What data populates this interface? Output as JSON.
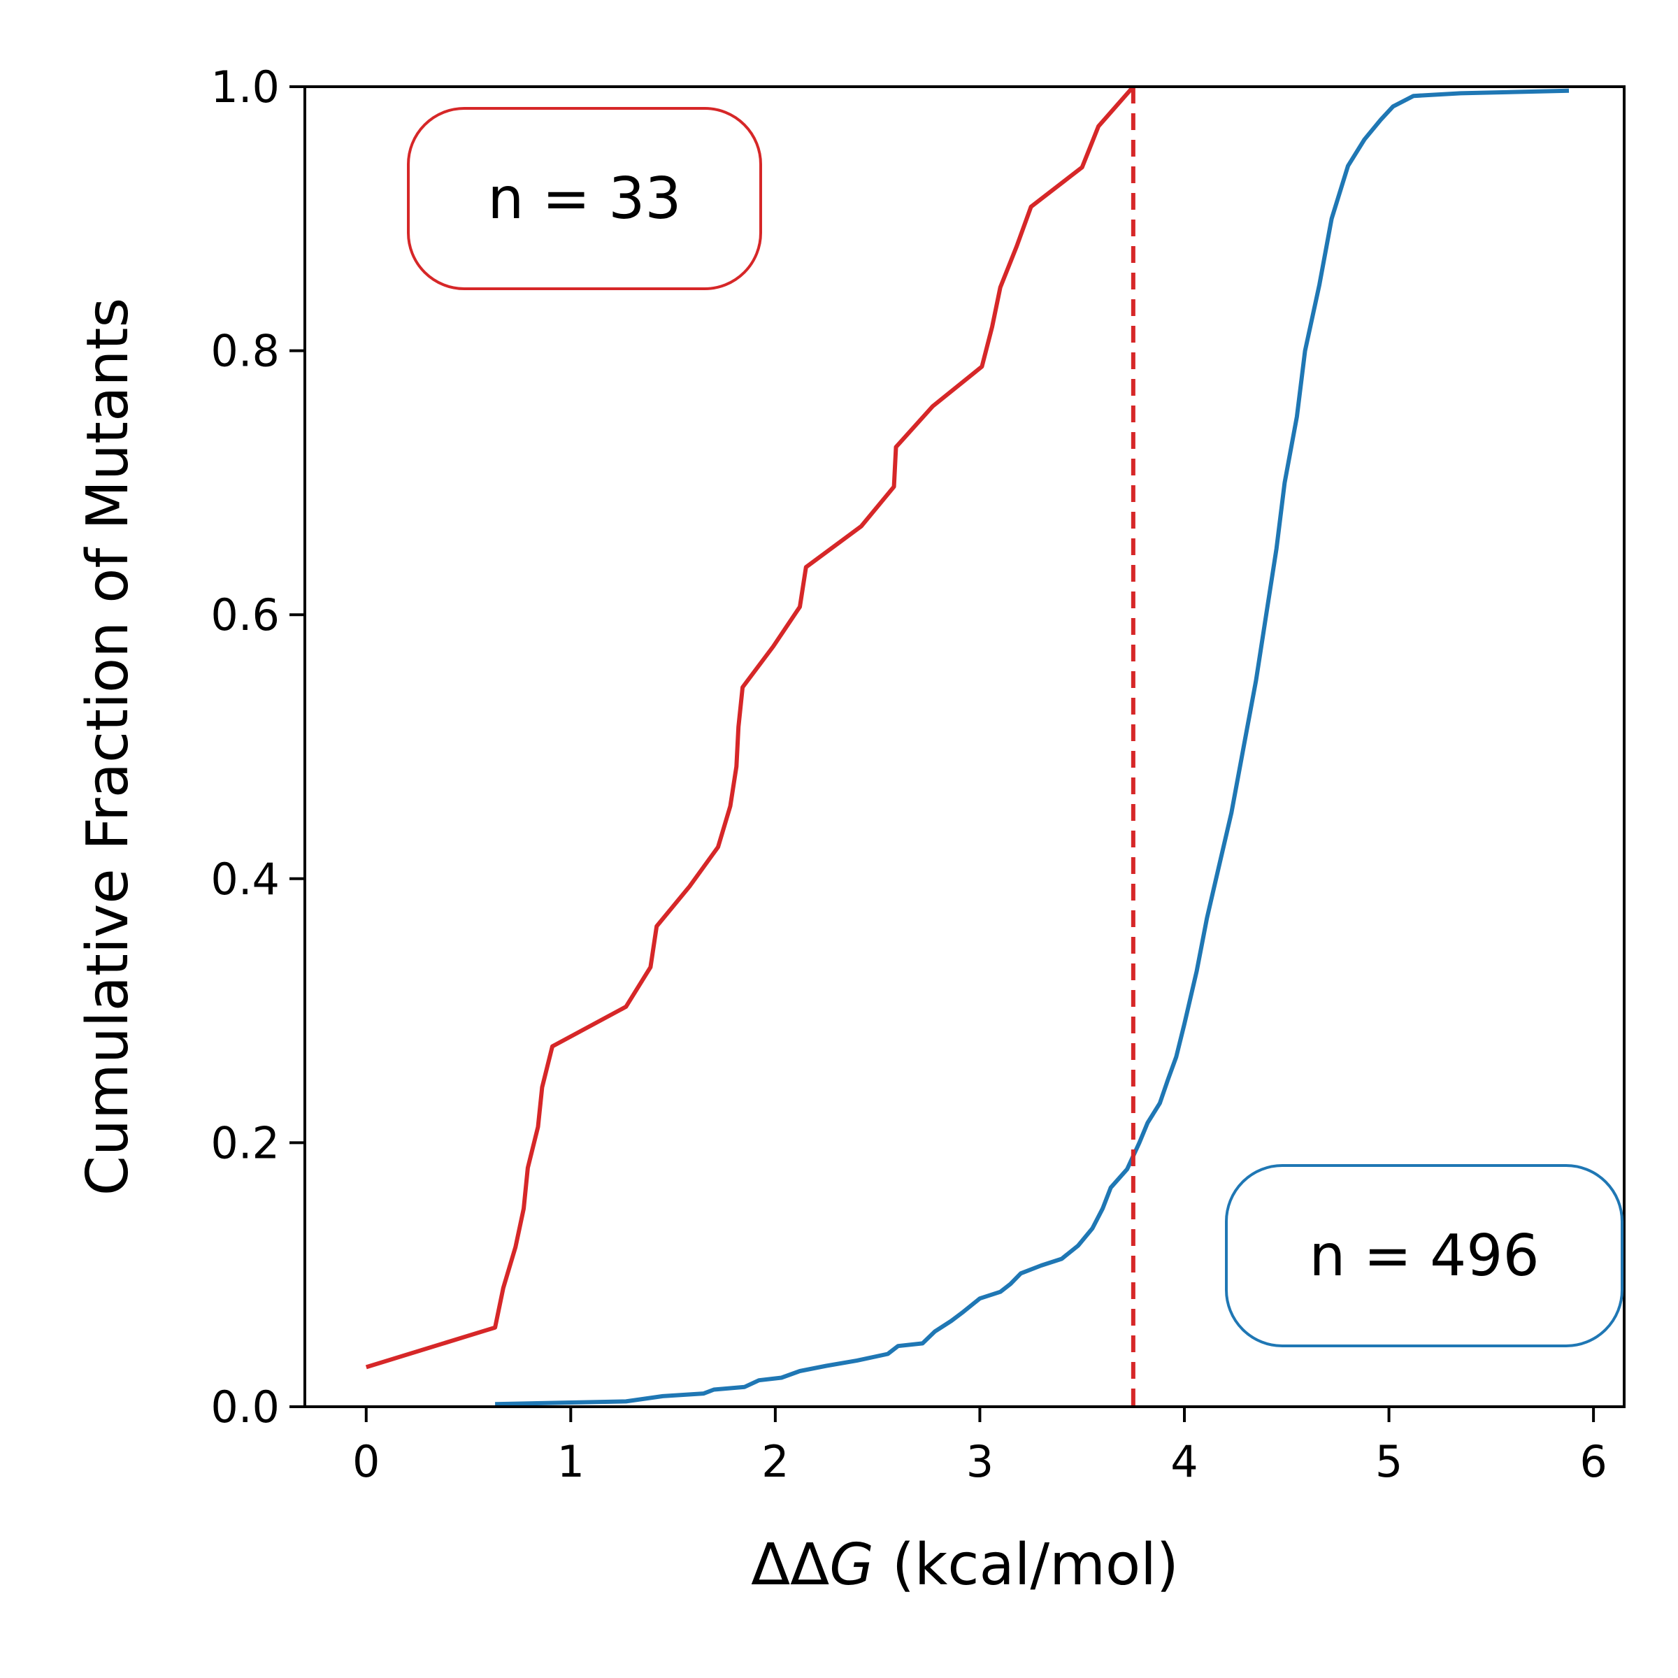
{
  "chart_data": {
    "type": "line",
    "xlabel_prefix": "ΔΔ",
    "xlabel_italic": "G",
    "xlabel_suffix": " (kcal/mol)",
    "ylabel": "Cumulative Fraction of Mutants",
    "xlim": [
      -0.3,
      6.15
    ],
    "ylim": [
      0.0,
      1.0
    ],
    "xticks": [
      0,
      1,
      2,
      3,
      4,
      5,
      6
    ],
    "yticks": [
      0.0,
      0.2,
      0.4,
      0.6,
      0.8,
      1.0
    ],
    "ytick_labels": [
      "0.0",
      "0.2",
      "0.4",
      "0.6",
      "0.8",
      "1.0"
    ],
    "threshold_x": 3.75,
    "threshold_color": "#d62728",
    "series": [
      {
        "color": "#d62728",
        "annotation": "n = 33",
        "points": [
          [
            0.0,
            0.03
          ],
          [
            0.63,
            0.06
          ],
          [
            0.67,
            0.09
          ],
          [
            0.73,
            0.121
          ],
          [
            0.77,
            0.15
          ],
          [
            0.79,
            0.181
          ],
          [
            0.84,
            0.212
          ],
          [
            0.86,
            0.242
          ],
          [
            0.91,
            0.273
          ],
          [
            1.27,
            0.303
          ],
          [
            1.39,
            0.333
          ],
          [
            1.42,
            0.364
          ],
          [
            1.58,
            0.394
          ],
          [
            1.72,
            0.424
          ],
          [
            1.78,
            0.455
          ],
          [
            1.81,
            0.485
          ],
          [
            1.82,
            0.515
          ],
          [
            1.84,
            0.545
          ],
          [
            1.99,
            0.576
          ],
          [
            2.12,
            0.606
          ],
          [
            2.15,
            0.636
          ],
          [
            2.42,
            0.667
          ],
          [
            2.58,
            0.697
          ],
          [
            2.59,
            0.727
          ],
          [
            2.77,
            0.758
          ],
          [
            3.01,
            0.788
          ],
          [
            3.06,
            0.818
          ],
          [
            3.1,
            0.848
          ],
          [
            3.18,
            0.879
          ],
          [
            3.25,
            0.909
          ],
          [
            3.5,
            0.939
          ],
          [
            3.58,
            0.97
          ],
          [
            3.75,
            1.0
          ]
        ]
      },
      {
        "color": "#1f77b4",
        "annotation": "n = 496",
        "points": [
          [
            0.63,
            0.002
          ],
          [
            1.27,
            0.004
          ],
          [
            1.45,
            0.008
          ],
          [
            1.65,
            0.01
          ],
          [
            1.7,
            0.013
          ],
          [
            1.85,
            0.015
          ],
          [
            1.92,
            0.02
          ],
          [
            2.03,
            0.022
          ],
          [
            2.12,
            0.027
          ],
          [
            2.25,
            0.031
          ],
          [
            2.4,
            0.035
          ],
          [
            2.55,
            0.04
          ],
          [
            2.6,
            0.046
          ],
          [
            2.72,
            0.048
          ],
          [
            2.78,
            0.057
          ],
          [
            2.86,
            0.065
          ],
          [
            2.92,
            0.072
          ],
          [
            3.0,
            0.082
          ],
          [
            3.1,
            0.087
          ],
          [
            3.15,
            0.093
          ],
          [
            3.2,
            0.101
          ],
          [
            3.3,
            0.107
          ],
          [
            3.4,
            0.112
          ],
          [
            3.48,
            0.122
          ],
          [
            3.55,
            0.135
          ],
          [
            3.6,
            0.15
          ],
          [
            3.64,
            0.166
          ],
          [
            3.72,
            0.18
          ],
          [
            3.78,
            0.2
          ],
          [
            3.82,
            0.215
          ],
          [
            3.88,
            0.23
          ],
          [
            3.92,
            0.248
          ],
          [
            3.96,
            0.265
          ],
          [
            4.0,
            0.29
          ],
          [
            4.06,
            0.33
          ],
          [
            4.11,
            0.37
          ],
          [
            4.17,
            0.41
          ],
          [
            4.23,
            0.45
          ],
          [
            4.29,
            0.5
          ],
          [
            4.35,
            0.55
          ],
          [
            4.4,
            0.6
          ],
          [
            4.45,
            0.65
          ],
          [
            4.49,
            0.7
          ],
          [
            4.55,
            0.75
          ],
          [
            4.59,
            0.8
          ],
          [
            4.66,
            0.85
          ],
          [
            4.72,
            0.9
          ],
          [
            4.8,
            0.94
          ],
          [
            4.88,
            0.96
          ],
          [
            4.96,
            0.975
          ],
          [
            5.02,
            0.985
          ],
          [
            5.12,
            0.993
          ],
          [
            5.35,
            0.995
          ],
          [
            5.88,
            0.997
          ]
        ]
      }
    ]
  }
}
